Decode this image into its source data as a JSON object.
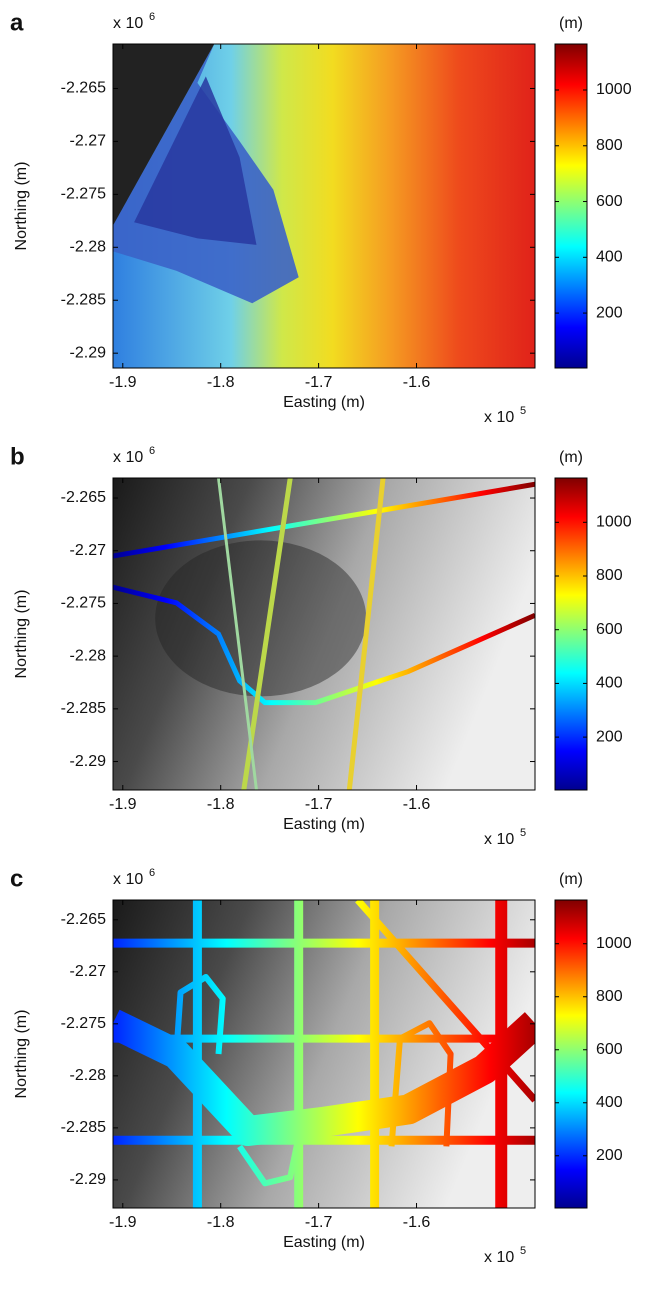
{
  "chart_data": [
    {
      "type": "heatmap",
      "panel_label": "a",
      "xlabel": "Easting (m)",
      "ylabel": "Northing (m)",
      "x_multiplier": "x 10",
      "x_multiplier_power": "5",
      "y_multiplier": "x 10",
      "y_multiplier_power": "6",
      "xlim": [
        -1.91,
        -1.479
      ],
      "xticks": [
        -1.9,
        -1.8,
        -1.7,
        -1.6
      ],
      "ylim": [
        -2.2914,
        -2.2608
      ],
      "yticks": [
        -2.29,
        -2.285,
        -2.28,
        -2.275,
        -2.27,
        -2.265
      ],
      "colorbar_label": "(m)",
      "clim": [
        3,
        1165
      ],
      "cticks": [
        200,
        400,
        600,
        800,
        1000
      ],
      "colormap": [
        "#00008f",
        "#0000ff",
        "#0080ff",
        "#00ffff",
        "#80ff80",
        "#ffff00",
        "#ff8000",
        "#ff0000",
        "#800000"
      ]
    },
    {
      "type": "heatmap",
      "panel_label": "b",
      "xlabel": "Easting (m)",
      "ylabel": "Northing (m)",
      "x_multiplier": "x 10",
      "x_multiplier_power": "5",
      "y_multiplier": "x 10",
      "y_multiplier_power": "6",
      "xlim": [
        -1.91,
        -1.479
      ],
      "xticks": [
        -1.9,
        -1.8,
        -1.7,
        -1.6
      ],
      "ylim": [
        -2.2927,
        -2.2631
      ],
      "yticks": [
        -2.29,
        -2.285,
        -2.28,
        -2.275,
        -2.27,
        -2.265
      ],
      "colorbar_label": "(m)",
      "clim": [
        3,
        1165
      ],
      "cticks": [
        200,
        400,
        600,
        800,
        1000
      ],
      "colormap": [
        "#00008f",
        "#0000ff",
        "#0080ff",
        "#00ffff",
        "#80ff80",
        "#ffff00",
        "#ff8000",
        "#ff0000",
        "#800000"
      ]
    },
    {
      "type": "heatmap",
      "panel_label": "c",
      "xlabel": "Easting (m)",
      "ylabel": "Northing (m)",
      "x_multiplier": "x 10",
      "x_multiplier_power": "5",
      "y_multiplier": "x 10",
      "y_multiplier_power": "6",
      "xlim": [
        -1.91,
        -1.479
      ],
      "xticks": [
        -1.9,
        -1.8,
        -1.7,
        -1.6
      ],
      "ylim": [
        -2.2927,
        -2.2631
      ],
      "yticks": [
        -2.29,
        -2.285,
        -2.28,
        -2.275,
        -2.27,
        -2.265
      ],
      "colorbar_label": "(m)",
      "clim": [
        3,
        1165
      ],
      "cticks": [
        200,
        400,
        600,
        800,
        1000
      ],
      "colormap": [
        "#00008f",
        "#0000ff",
        "#0080ff",
        "#00ffff",
        "#80ff80",
        "#ffff00",
        "#ff8000",
        "#ff0000",
        "#800000"
      ]
    }
  ]
}
